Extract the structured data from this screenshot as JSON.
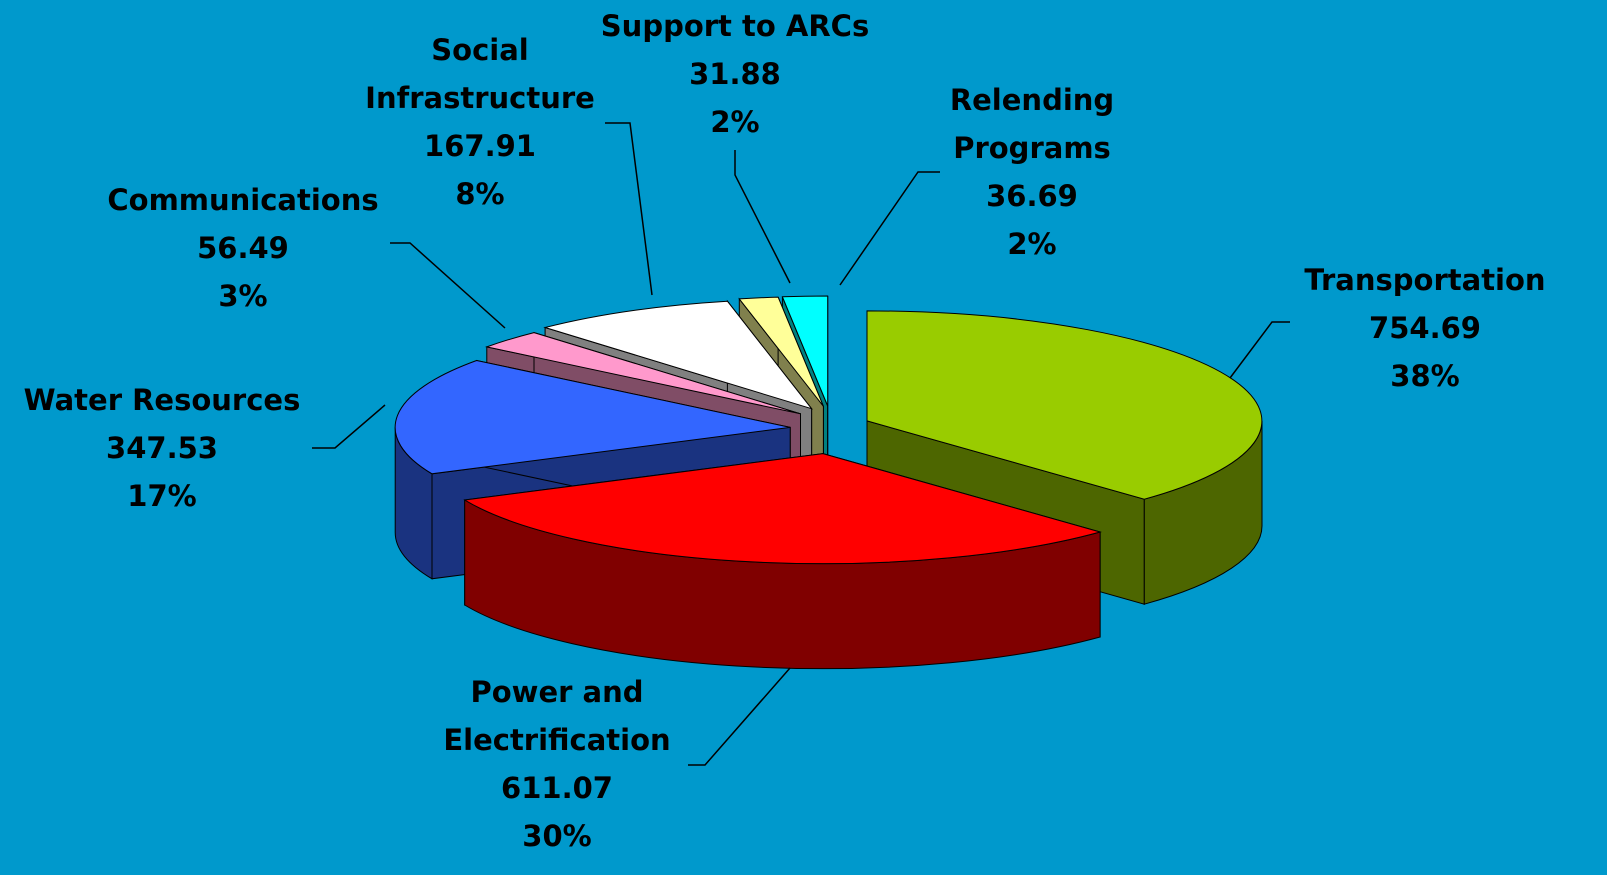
{
  "chart_data": {
    "type": "pie",
    "categories": [
      "Transportation",
      "Power and Electrification",
      "Water Resources",
      "Communications",
      "Social Infrastructure",
      "Support to ARCs",
      "Relending Programs"
    ],
    "values": [
      754.69,
      611.07,
      347.53,
      56.49,
      167.91,
      31.88,
      36.69
    ],
    "percent_labels": [
      "38%",
      "30%",
      "17%",
      "3%",
      "8%",
      "2%",
      "2%"
    ],
    "colors": [
      "#99cc00",
      "#ff0000",
      "#3366ff",
      "#ff99cc",
      "#ffffff",
      "#ffff99",
      "#00ffff"
    ],
    "side_colors": [
      "#4d6600",
      "#800000",
      "#1a3380",
      "#804d66",
      "#808080",
      "#80804d",
      "#008080"
    ],
    "background": "#0099cc"
  }
}
